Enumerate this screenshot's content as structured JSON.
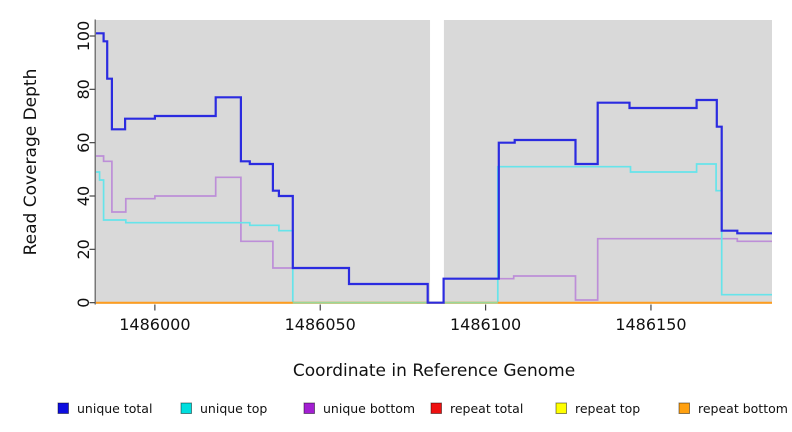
{
  "chart_data": {
    "type": "line",
    "subtype": "step-after-coverage-plot",
    "title": "",
    "xlabel": "Coordinate in Reference Genome",
    "ylabel": "Read Coverage Depth",
    "x_range": [
      1485982.2,
      1486186.6
    ],
    "y_range": [
      -0.5,
      106
    ],
    "x_ticks": [
      1486000,
      1486050,
      1486100,
      1486150
    ],
    "y_ticks": [
      0,
      20,
      40,
      60,
      80,
      100
    ],
    "grid": false,
    "panel_bg": "#d9d9d9",
    "gap_region": {
      "x_start": 1486083.2,
      "x_end": 1486087.4
    },
    "series": [
      {
        "name": "repeat total",
        "line_color": "#e01111",
        "line_width": 1.5,
        "points": [
          [
            1485982.2,
            0
          ]
        ]
      },
      {
        "name": "repeat top",
        "line_color": "#f5f500",
        "line_width": 1.5,
        "points": [
          [
            1485982.2,
            0
          ]
        ]
      },
      {
        "name": "unique bottom",
        "line_color": "#bd8ed8",
        "line_width": 1.7,
        "points": [
          [
            1485982.2,
            55
          ],
          [
            1485984.5,
            53
          ],
          [
            1485987,
            34
          ],
          [
            1485991.2,
            39
          ],
          [
            1486000,
            40
          ],
          [
            1486018.4,
            47
          ],
          [
            1486026,
            23
          ],
          [
            1486035.7,
            13
          ],
          [
            1486058.7,
            7
          ],
          [
            1486082.5,
            0
          ],
          [
            1486087.3,
            9
          ],
          [
            1486108.5,
            10
          ],
          [
            1486127.2,
            1
          ],
          [
            1486133.9,
            24
          ],
          [
            1486176.1,
            23
          ]
        ]
      },
      {
        "name": "unique top",
        "line_color": "#66e4ea",
        "line_width": 1.7,
        "points": [
          [
            1485982.2,
            49
          ],
          [
            1485983.3,
            46
          ],
          [
            1485984.5,
            31
          ],
          [
            1485991.2,
            30
          ],
          [
            1486028.7,
            29
          ],
          [
            1486037.5,
            27
          ],
          [
            1486041.7,
            0
          ],
          [
            1486103.7,
            51
          ],
          [
            1486143.8,
            49
          ],
          [
            1486163.8,
            52
          ],
          [
            1486169.7,
            42
          ],
          [
            1486171.4,
            3
          ]
        ]
      },
      {
        "name": "repeat bottom",
        "line_color": "#ff9d1e",
        "line_width": 2.0,
        "points": [
          [
            1485982.2,
            0
          ]
        ]
      },
      {
        "name": "unique total",
        "line_color": "#2b2be0",
        "line_width": 2.2,
        "points": [
          [
            1485982.2,
            101
          ],
          [
            1485984.5,
            98
          ],
          [
            1485985.6,
            84
          ],
          [
            1485987,
            65
          ],
          [
            1485991,
            69
          ],
          [
            1486000,
            70
          ],
          [
            1486018.4,
            77
          ],
          [
            1486026,
            53
          ],
          [
            1486028.7,
            52
          ],
          [
            1486035.7,
            42
          ],
          [
            1486037.5,
            40
          ],
          [
            1486041.7,
            13
          ],
          [
            1486058.7,
            7
          ],
          [
            1486082.5,
            0
          ],
          [
            1486087.3,
            9
          ],
          [
            1486104,
            60
          ],
          [
            1486108.8,
            61
          ],
          [
            1486127.2,
            52
          ],
          [
            1486133.9,
            75
          ],
          [
            1486143.5,
            73
          ],
          [
            1486163.8,
            76
          ],
          [
            1486169.9,
            66
          ],
          [
            1486171.4,
            27
          ],
          [
            1486176.1,
            26
          ]
        ]
      }
    ],
    "zero_line_overlay": {
      "x_start": 1486041.7,
      "x_end": 1486103.7,
      "value": 0,
      "color": "#98d898",
      "line_width": 1.7
    },
    "legend_position": "bottom",
    "legend": [
      {
        "label": "unique total",
        "color": "#0d0de0"
      },
      {
        "label": "unique top",
        "color": "#00dede"
      },
      {
        "label": "unique bottom",
        "color": "#a31fd2"
      },
      {
        "label": "repeat total",
        "color": "#ee1010"
      },
      {
        "label": "repeat top",
        "color": "#ffff00"
      },
      {
        "label": "repeat bottom",
        "color": "#ffa010"
      }
    ]
  }
}
